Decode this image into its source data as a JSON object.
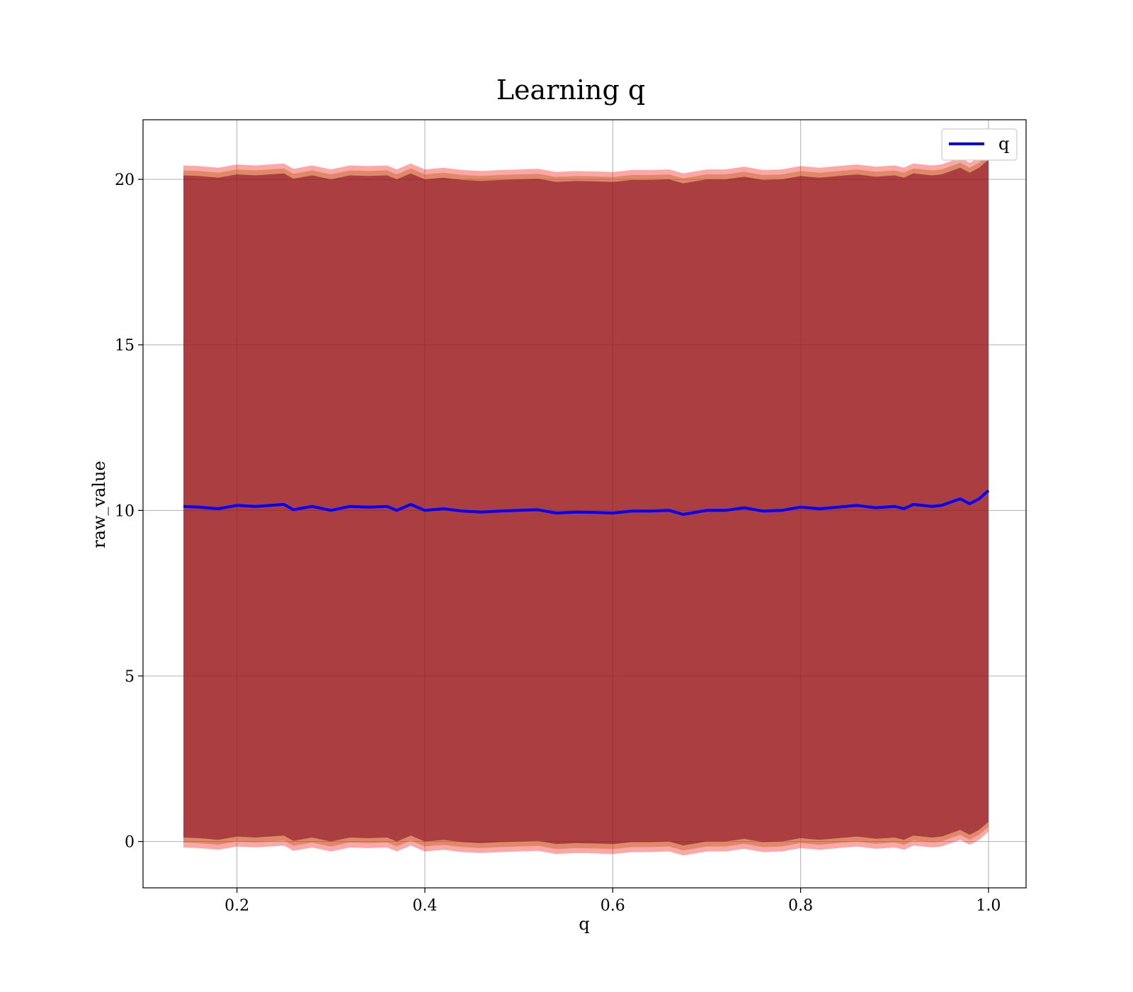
{
  "chart_data": {
    "type": "line",
    "title": "Learning q",
    "xlabel": "q",
    "ylabel": "raw_value",
    "xlim": [
      0.1,
      1.04
    ],
    "ylim": [
      -1.4,
      21.8
    ],
    "xticks": [
      0.2,
      0.4,
      0.6,
      0.8,
      1.0
    ],
    "xtick_labels": [
      "0.2",
      "0.4",
      "0.6",
      "0.8",
      "1.0"
    ],
    "yticks": [
      0,
      5,
      10,
      15,
      20
    ],
    "ytick_labels": [
      "0",
      "5",
      "10",
      "15",
      "20"
    ],
    "grid": true,
    "legend": {
      "position": "top-right",
      "entries": [
        "q"
      ]
    },
    "x": [
      0.143,
      0.16,
      0.18,
      0.2,
      0.22,
      0.25,
      0.26,
      0.28,
      0.3,
      0.32,
      0.34,
      0.36,
      0.37,
      0.385,
      0.4,
      0.42,
      0.44,
      0.46,
      0.48,
      0.5,
      0.52,
      0.54,
      0.56,
      0.58,
      0.6,
      0.62,
      0.64,
      0.66,
      0.675,
      0.7,
      0.72,
      0.74,
      0.76,
      0.78,
      0.8,
      0.82,
      0.84,
      0.86,
      0.88,
      0.9,
      0.91,
      0.92,
      0.94,
      0.95,
      0.97,
      0.98,
      0.99,
      1.0
    ],
    "series": [
      {
        "name": "q",
        "color": "#0000ff",
        "values": [
          10.12,
          10.1,
          10.05,
          10.15,
          10.12,
          10.18,
          10.02,
          10.12,
          10.0,
          10.12,
          10.1,
          10.12,
          10.0,
          10.18,
          10.0,
          10.05,
          9.98,
          9.95,
          9.98,
          10.0,
          10.02,
          9.92,
          9.95,
          9.94,
          9.92,
          9.98,
          9.98,
          10.0,
          9.88,
          10.0,
          10.0,
          10.08,
          9.98,
          10.0,
          10.1,
          10.05,
          10.1,
          10.15,
          10.08,
          10.12,
          10.05,
          10.18,
          10.12,
          10.15,
          10.35,
          10.2,
          10.35,
          10.6
        ]
      }
    ],
    "bands": [
      {
        "color": "#ff0000",
        "opacity": 0.35,
        "halfwidth": 10.3
      },
      {
        "color": "#b5651d",
        "opacity": 0.45,
        "halfwidth": 10.15
      },
      {
        "color": "#800020",
        "opacity": 0.55,
        "halfwidth": 10.0
      }
    ]
  }
}
